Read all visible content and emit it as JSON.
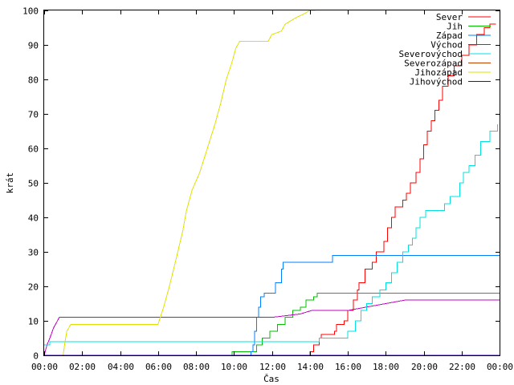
{
  "chart_data": {
    "type": "line",
    "title": "",
    "xlabel": "Čas",
    "ylabel": "krát",
    "xlim": [
      0,
      24
    ],
    "ylim": [
      0,
      100
    ],
    "grid": false,
    "legend_position": "top-right",
    "x_ticks": [
      {
        "value": 0,
        "label": "00:00"
      },
      {
        "value": 2,
        "label": "02:00"
      },
      {
        "value": 4,
        "label": "04:00"
      },
      {
        "value": 6,
        "label": "06:00"
      },
      {
        "value": 8,
        "label": "08:00"
      },
      {
        "value": 10,
        "label": "10:00"
      },
      {
        "value": 12,
        "label": "12:00"
      },
      {
        "value": 14,
        "label": "14:00"
      },
      {
        "value": 16,
        "label": "16:00"
      },
      {
        "value": 18,
        "label": "18:00"
      },
      {
        "value": 20,
        "label": "20:00"
      },
      {
        "value": 22,
        "label": "22:00"
      },
      {
        "value": 24,
        "label": "00:00"
      }
    ],
    "y_ticks": [
      {
        "value": 0,
        "label": "0"
      },
      {
        "value": 10,
        "label": "10"
      },
      {
        "value": 20,
        "label": "20"
      },
      {
        "value": 30,
        "label": "30"
      },
      {
        "value": 40,
        "label": "40"
      },
      {
        "value": 50,
        "label": "50"
      },
      {
        "value": 60,
        "label": "60"
      },
      {
        "value": 70,
        "label": "70"
      },
      {
        "value": 80,
        "label": "80"
      },
      {
        "value": 90,
        "label": "90"
      },
      {
        "value": 100,
        "label": "100"
      }
    ],
    "series": [
      {
        "name": "Sever",
        "color": "#ff0000",
        "step": true,
        "points": [
          [
            13.9,
            0
          ],
          [
            14.0,
            1
          ],
          [
            14.2,
            3
          ],
          [
            14.5,
            5
          ],
          [
            14.6,
            6
          ],
          [
            15.3,
            7
          ],
          [
            15.4,
            9
          ],
          [
            15.8,
            10
          ],
          [
            16.0,
            13
          ],
          [
            16.3,
            16
          ],
          [
            16.5,
            19
          ],
          [
            16.6,
            21
          ],
          [
            16.9,
            25
          ],
          [
            17.3,
            27
          ],
          [
            17.5,
            30
          ],
          [
            17.9,
            33
          ],
          [
            18.1,
            37
          ],
          [
            18.3,
            40
          ],
          [
            18.5,
            43
          ],
          [
            18.9,
            45
          ],
          [
            19.1,
            47
          ],
          [
            19.3,
            50
          ],
          [
            19.6,
            53
          ],
          [
            19.8,
            57
          ],
          [
            20.0,
            61
          ],
          [
            20.2,
            65
          ],
          [
            20.4,
            68
          ],
          [
            20.6,
            71
          ],
          [
            20.8,
            74
          ],
          [
            21.0,
            78
          ],
          [
            21.3,
            81
          ],
          [
            21.6,
            84
          ],
          [
            22.0,
            87
          ],
          [
            22.4,
            90
          ],
          [
            22.8,
            93
          ],
          [
            23.2,
            95
          ],
          [
            23.5,
            96
          ],
          [
            23.8,
            96
          ]
        ]
      },
      {
        "name": "Jih",
        "color": "#00c000",
        "step": true,
        "points": [
          [
            9.8,
            0
          ],
          [
            9.9,
            1
          ],
          [
            11.2,
            3
          ],
          [
            11.5,
            5
          ],
          [
            11.9,
            7
          ],
          [
            12.3,
            9
          ],
          [
            12.7,
            11
          ],
          [
            13.1,
            13
          ],
          [
            13.5,
            14
          ],
          [
            13.8,
            16
          ],
          [
            14.2,
            17
          ],
          [
            14.4,
            18
          ],
          [
            16.0,
            18
          ],
          [
            18.0,
            18
          ],
          [
            20.0,
            18
          ],
          [
            24.0,
            18
          ]
        ]
      },
      {
        "name": "Západ",
        "color": "#0080ff",
        "step": true,
        "points": [
          [
            10.8,
            0
          ],
          [
            10.9,
            1
          ],
          [
            11.0,
            3
          ],
          [
            11.1,
            7
          ],
          [
            11.2,
            11
          ],
          [
            11.3,
            14
          ],
          [
            11.4,
            17
          ],
          [
            11.6,
            18
          ],
          [
            12.2,
            21
          ],
          [
            12.5,
            25
          ],
          [
            12.6,
            27
          ],
          [
            14.0,
            27
          ],
          [
            15.2,
            29
          ],
          [
            18.0,
            29
          ],
          [
            24.0,
            29
          ]
        ]
      },
      {
        "name": "Východ",
        "color": "#c000c0",
        "step": false,
        "points": [
          [
            0.0,
            0
          ],
          [
            0.15,
            3
          ],
          [
            0.3,
            5
          ],
          [
            0.5,
            8
          ],
          [
            0.8,
            11
          ],
          [
            6.0,
            11
          ],
          [
            12.0,
            11
          ],
          [
            13.5,
            12
          ],
          [
            14.1,
            13
          ],
          [
            16.0,
            13
          ],
          [
            17.0,
            14
          ],
          [
            18.0,
            15
          ],
          [
            19.0,
            16
          ],
          [
            24.0,
            16
          ]
        ]
      },
      {
        "name": "Severovýchod",
        "color": "#00e0e0",
        "step": true,
        "points": [
          [
            0.0,
            3
          ],
          [
            0.3,
            4
          ],
          [
            10.0,
            4
          ],
          [
            11.5,
            4
          ],
          [
            13.0,
            4
          ],
          [
            14.0,
            4
          ],
          [
            14.5,
            5
          ],
          [
            15.4,
            5
          ],
          [
            16.0,
            7
          ],
          [
            16.4,
            10
          ],
          [
            16.7,
            13
          ],
          [
            17.0,
            15
          ],
          [
            17.3,
            17
          ],
          [
            17.7,
            19
          ],
          [
            18.0,
            21
          ],
          [
            18.3,
            24
          ],
          [
            18.6,
            27
          ],
          [
            18.9,
            30
          ],
          [
            19.2,
            32
          ],
          [
            19.4,
            34
          ],
          [
            19.6,
            37
          ],
          [
            19.8,
            40
          ],
          [
            20.1,
            42
          ],
          [
            20.6,
            42
          ],
          [
            21.1,
            44
          ],
          [
            21.4,
            46
          ],
          [
            21.9,
            50
          ],
          [
            22.1,
            53
          ],
          [
            22.4,
            55
          ],
          [
            22.7,
            58
          ],
          [
            23.0,
            62
          ],
          [
            23.5,
            65
          ],
          [
            23.9,
            67
          ]
        ]
      },
      {
        "name": "Severozápad",
        "color": "#c04000",
        "step": true,
        "points": [
          [
            0.0,
            0
          ],
          [
            24.0,
            0
          ]
        ]
      },
      {
        "name": "Jihozápad",
        "color": "#e0e000",
        "step": false,
        "points": [
          [
            1.0,
            0
          ],
          [
            1.1,
            4
          ],
          [
            1.2,
            7
          ],
          [
            1.4,
            9
          ],
          [
            2.0,
            9
          ],
          [
            6.0,
            9
          ],
          [
            6.3,
            14
          ],
          [
            6.6,
            20
          ],
          [
            7.0,
            29
          ],
          [
            7.3,
            36
          ],
          [
            7.5,
            42
          ],
          [
            7.8,
            48
          ],
          [
            8.2,
            53
          ],
          [
            8.6,
            60
          ],
          [
            9.0,
            67
          ],
          [
            9.3,
            73
          ],
          [
            9.6,
            80
          ],
          [
            9.9,
            85
          ],
          [
            10.1,
            89
          ],
          [
            10.3,
            91
          ],
          [
            11.0,
            91
          ],
          [
            11.8,
            91
          ],
          [
            12.0,
            93
          ],
          [
            12.5,
            94
          ],
          [
            12.7,
            96
          ],
          [
            13.0,
            97
          ],
          [
            13.3,
            98
          ],
          [
            13.7,
            99
          ],
          [
            14.0,
            100
          ],
          [
            14.3,
            100
          ]
        ]
      },
      {
        "name": "Jihovýchod",
        "color": "#4000c0",
        "step": false,
        "points": [
          [
            0.0,
            0
          ],
          [
            24.0,
            0
          ]
        ]
      }
    ]
  }
}
